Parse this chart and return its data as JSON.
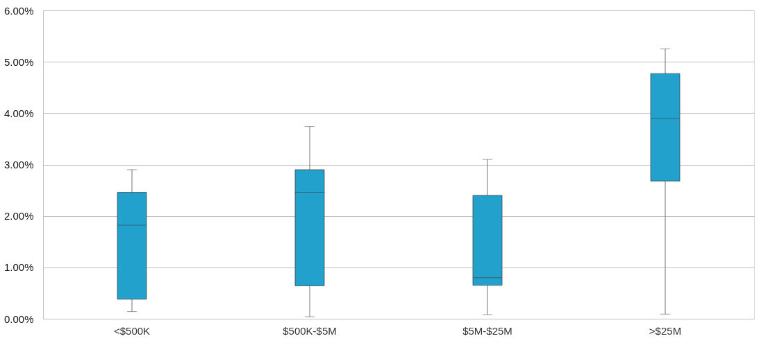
{
  "chart_data": {
    "type": "box",
    "categories": [
      "<$500K",
      "$500K-$5M",
      "$5M-$25M",
      ">$25M"
    ],
    "boxes": [
      {
        "low": 0.14,
        "q1": 0.38,
        "median": 1.82,
        "q3": 2.46,
        "high": 2.9
      },
      {
        "low": 0.04,
        "q1": 0.64,
        "median": 2.46,
        "q3": 2.9,
        "high": 3.74
      },
      {
        "low": 0.08,
        "q1": 0.65,
        "median": 0.8,
        "q3": 2.4,
        "high": 3.1
      },
      {
        "low": 0.09,
        "q1": 2.68,
        "median": 3.9,
        "q3": 4.77,
        "high": 5.25
      }
    ],
    "color": "#22a1cc",
    "ylim": [
      0,
      6
    ],
    "yticks": [
      {
        "value": 0,
        "label": "0.00%"
      },
      {
        "value": 1,
        "label": "1.00%"
      },
      {
        "value": 2,
        "label": "2.00%"
      },
      {
        "value": 3,
        "label": "3.00%"
      },
      {
        "value": 4,
        "label": "4.00%"
      },
      {
        "value": 5,
        "label": "5.00%"
      },
      {
        "value": 6,
        "label": "6.00%"
      }
    ],
    "grid": "y"
  }
}
